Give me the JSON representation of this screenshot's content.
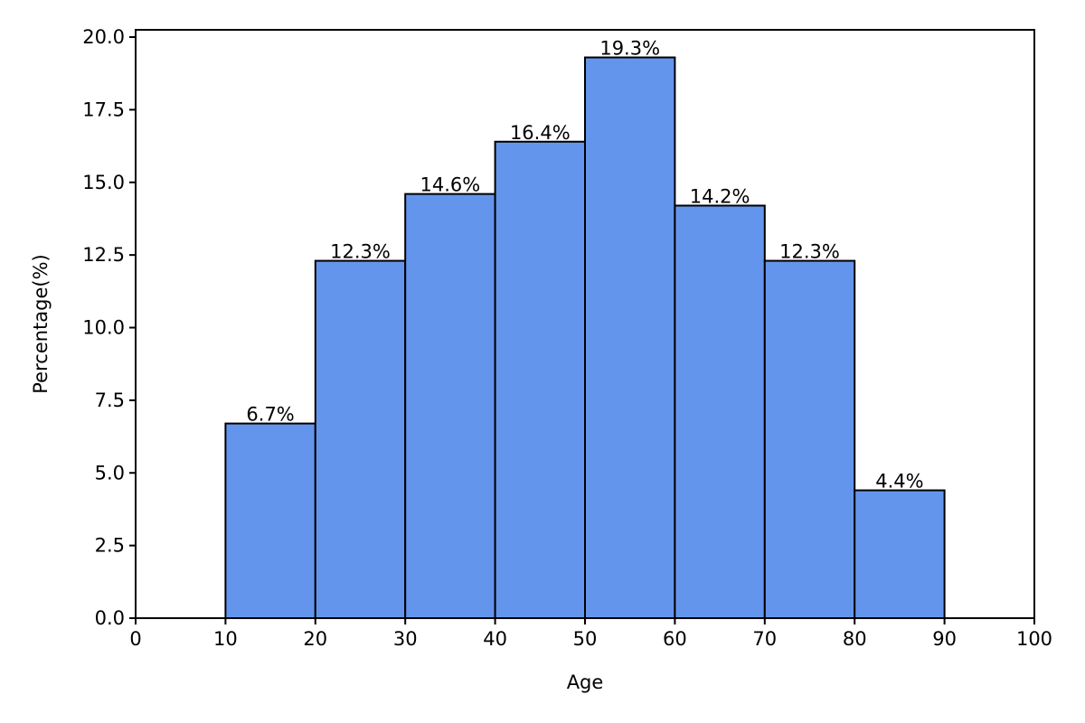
{
  "chart_data": {
    "type": "bar",
    "bins": [
      [
        10,
        20
      ],
      [
        20,
        30
      ],
      [
        30,
        40
      ],
      [
        40,
        50
      ],
      [
        50,
        60
      ],
      [
        60,
        70
      ],
      [
        70,
        80
      ],
      [
        80,
        90
      ]
    ],
    "values": [
      6.7,
      12.3,
      14.6,
      16.4,
      19.3,
      14.2,
      12.3,
      4.4
    ],
    "labels": [
      "6.7%",
      "12.3%",
      "14.6%",
      "16.4%",
      "19.3%",
      "14.2%",
      "12.3%",
      "4.4%"
    ],
    "title": "",
    "xlabel": "Age",
    "ylabel": "Percentage(%)",
    "xlim": [
      0,
      100
    ],
    "ylim": [
      0,
      20.25
    ],
    "xticks": [
      0,
      10,
      20,
      30,
      40,
      50,
      60,
      70,
      80,
      90,
      100
    ],
    "xtick_labels": [
      "0",
      "10",
      "20",
      "30",
      "40",
      "50",
      "60",
      "70",
      "80",
      "90",
      "100"
    ],
    "yticks": [
      0,
      2.5,
      5,
      7.5,
      10,
      12.5,
      15,
      17.5,
      20
    ],
    "ytick_labels": [
      "0.0",
      "2.5",
      "5.0",
      "7.5",
      "10.0",
      "12.5",
      "15.0",
      "17.5",
      "20.0"
    ],
    "grid": false,
    "legend": "none",
    "bar_color": "#6495ED",
    "edge_color": "#000000"
  }
}
